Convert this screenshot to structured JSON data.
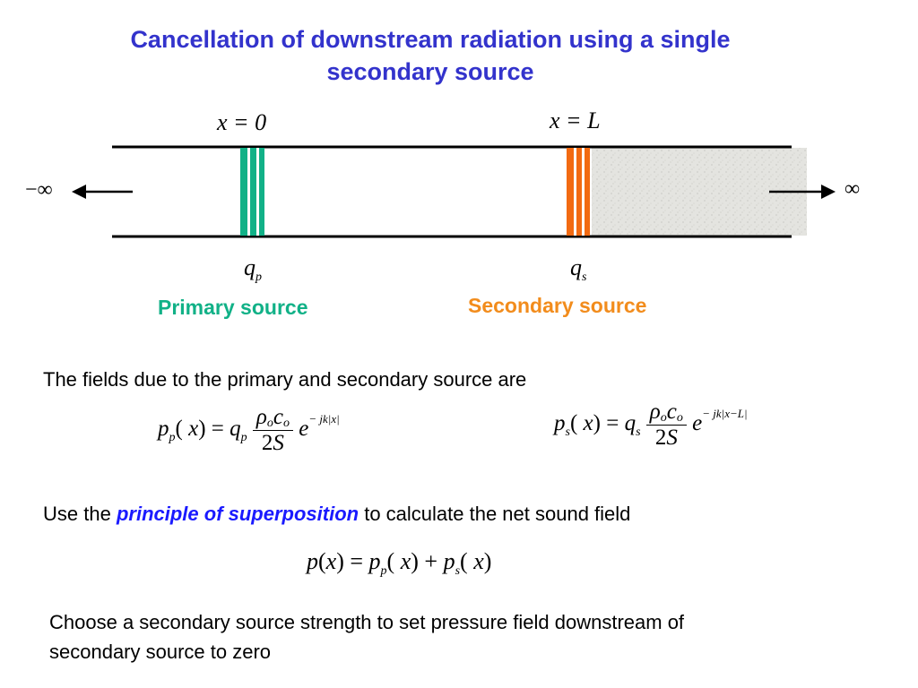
{
  "title_line1": "Cancellation of downstream radiation using a single",
  "title_line2": "secondary source",
  "diagram": {
    "label_x0": "x = 0",
    "label_xL": "x = L",
    "neg_inf": "−∞",
    "pos_inf": "∞",
    "qp": "q",
    "qp_sub": "p",
    "qs": "q",
    "qs_sub": "s",
    "primary_label": "Primary source",
    "secondary_label": "Secondary source",
    "colors": {
      "primary": "#11b187",
      "secondary": "#f28c1c",
      "title": "#3333cc"
    }
  },
  "text": {
    "fields_intro": "The fields due to the primary and secondary source are",
    "use_the": "Use the",
    "principle": "principle of superposition",
    "to_calc": "to calculate the net sound field",
    "choose_line1": "Choose a secondary source strength to set pressure field downstream of",
    "choose_line2": "secondary source to zero"
  },
  "equations": {
    "pp": "p_p(x) = q_p (ρ_o c_o / 2S) e^{−jk|x|}",
    "ps": "p_s(x) = q_s (ρ_o c_o / 2S) e^{−jk|x−L|}",
    "sum": "p(x) = p_p(x) + p_s(x)"
  }
}
